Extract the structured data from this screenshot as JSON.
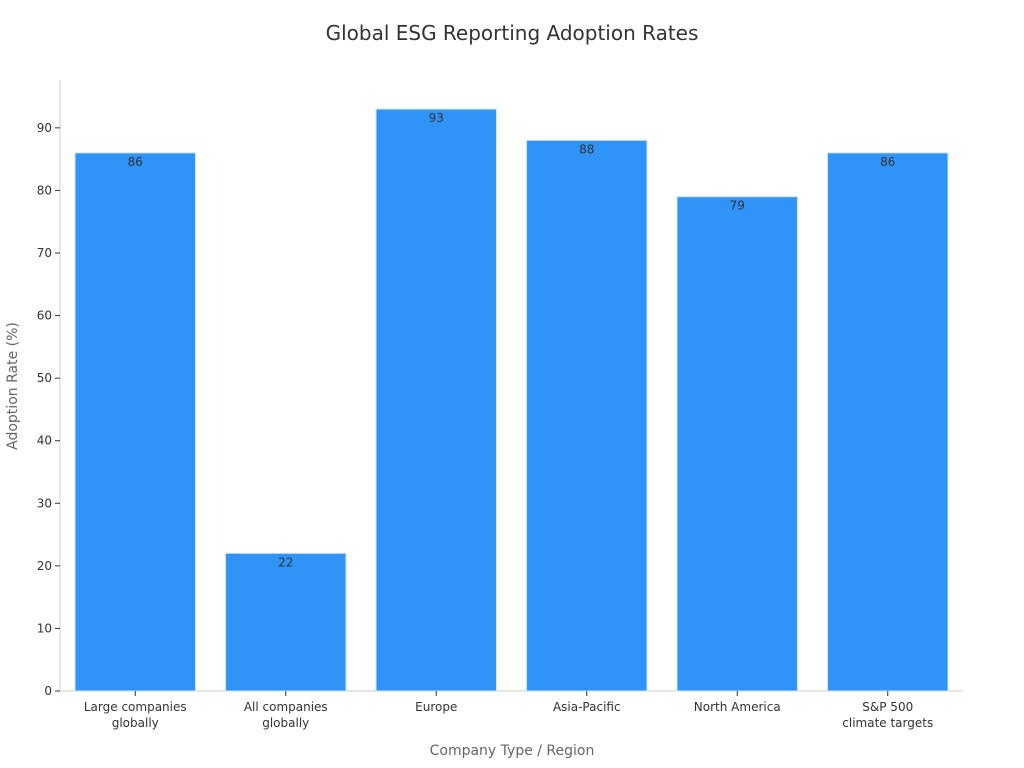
{
  "chart_data": {
    "type": "bar",
    "title": "Global ESG Reporting Adoption Rates",
    "xlabel": "Company Type / Region",
    "ylabel": "Adoption Rate (%)",
    "categories": [
      [
        "Large companies",
        "globally"
      ],
      [
        "All companies",
        "globally"
      ],
      [
        "Europe"
      ],
      [
        "Asia-Pacific"
      ],
      [
        "North America"
      ],
      [
        "S&P 500",
        "climate targets"
      ]
    ],
    "values": [
      86,
      22,
      93,
      88,
      79,
      86
    ],
    "data_labels": [
      "86",
      "22",
      "93",
      "88",
      "79",
      "86"
    ],
    "yticks": [
      0,
      10,
      20,
      30,
      40,
      50,
      60,
      70,
      80,
      90
    ],
    "ylim": [
      0,
      97.65
    ],
    "grid": false,
    "legend": "none",
    "colors": {
      "bar": "#3093f7",
      "bar_edge": "#c9e2fb",
      "axis": "#cccccc",
      "tick_text": "#333333"
    }
  }
}
